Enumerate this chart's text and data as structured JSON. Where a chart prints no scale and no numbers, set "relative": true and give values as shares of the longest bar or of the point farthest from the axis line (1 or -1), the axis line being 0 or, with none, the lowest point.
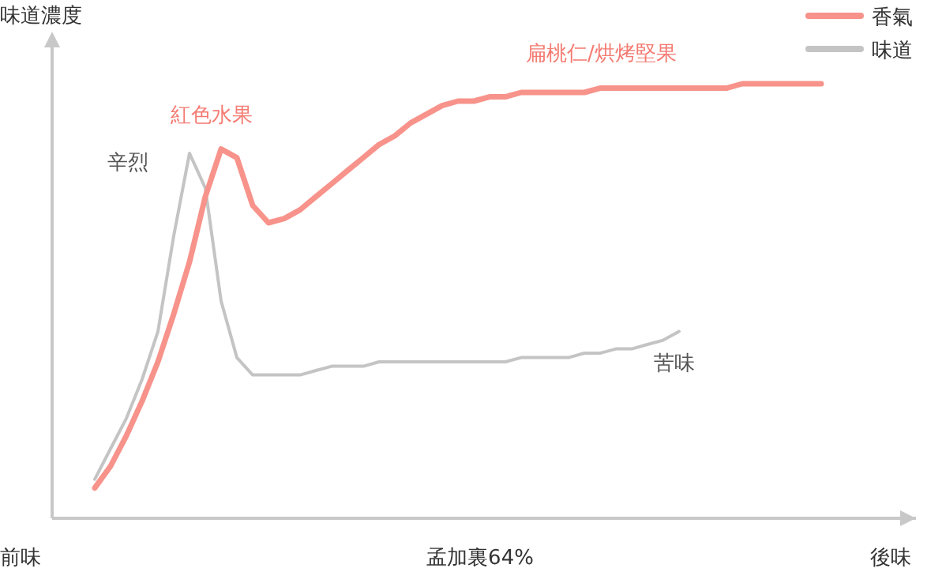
{
  "chart_data": {
    "type": "line",
    "relative": true,
    "ylabel": "味道濃度",
    "xlabel": "孟加裏64%",
    "legend": "top right",
    "categories": [
      null,
      null,
      null,
      null,
      null,
      null,
      null,
      null,
      null,
      null,
      null,
      null,
      null,
      null,
      null,
      null,
      null,
      null,
      null,
      null,
      null,
      null,
      null,
      null,
      null,
      null,
      null,
      null,
      null,
      null,
      null,
      null,
      null,
      null,
      null,
      null,
      null,
      null,
      null,
      null,
      null,
      null,
      null,
      null,
      null,
      null,
      null,
      null
    ],
    "series": [
      {
        "name": "香氣",
        "color": "#f7938b",
        "values": [
          0.07,
          0.12,
          0.19,
          0.27,
          0.36,
          0.47,
          0.59,
          0.74,
          0.85,
          0.83,
          0.72,
          0.68,
          0.69,
          0.71,
          0.74,
          0.77,
          0.8,
          0.83,
          0.86,
          0.88,
          0.91,
          0.93,
          0.95,
          0.96,
          0.96,
          0.97,
          0.97,
          0.98,
          0.98,
          0.98,
          0.98,
          0.98,
          0.99,
          0.99,
          0.99,
          0.99,
          0.99,
          0.99,
          0.99,
          0.99,
          0.99,
          1.0,
          1.0,
          1.0,
          1.0,
          1.0,
          1.0,
          null
        ]
      },
      {
        "name": "味道",
        "color": "#c4c4c4",
        "values": [
          0.09,
          0.16,
          0.23,
          0.32,
          0.43,
          0.65,
          0.84,
          0.76,
          0.5,
          0.37,
          0.33,
          0.33,
          0.33,
          0.33,
          0.34,
          0.35,
          0.35,
          0.35,
          0.36,
          0.36,
          0.36,
          0.36,
          0.36,
          0.36,
          0.36,
          0.36,
          0.36,
          0.37,
          0.37,
          0.37,
          0.37,
          0.38,
          0.38,
          0.39,
          0.39,
          0.4,
          0.41,
          0.43,
          null,
          null,
          null,
          null,
          null,
          null,
          null,
          null,
          null,
          null
        ]
      }
    ],
    "annotations": [
      "紅色水果",
      "扁桃仁/烘烤堅果",
      "辛烈",
      "苦味",
      "前味",
      "後味"
    ]
  }
}
